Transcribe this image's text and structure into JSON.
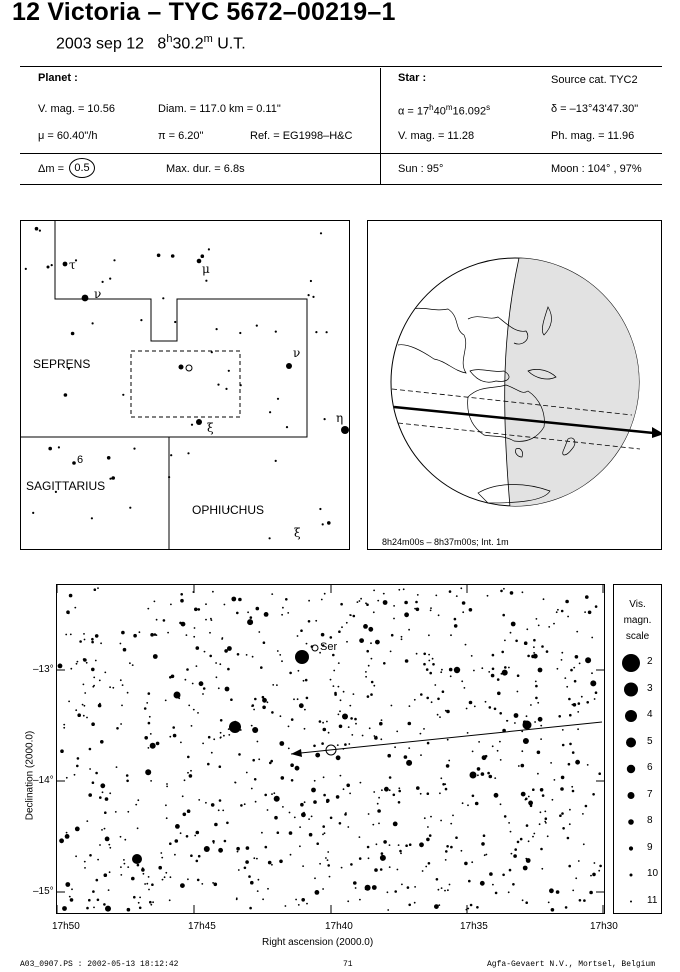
{
  "header": {
    "title": "12 Victoria  –  TYC 5672–00219–1",
    "date": "2003 sep 12",
    "time_h": "8",
    "time_frac": "30.2",
    "time_unit": "U.T.",
    "h_sup": "h",
    "m_sup": "m"
  },
  "planet": {
    "heading": "Planet :",
    "vmag": "V. mag. = 10.56",
    "diam": "Diam. = 117.0 km = 0.11\"",
    "mu": "μ =  60.40\"/h",
    "pi": "π =  6.20\"",
    "ref": "Ref. = EG1998–H&C",
    "dm_label": "Δm =",
    "dm_value": "0.5",
    "maxdur": "Max. dur. = 6.8s"
  },
  "star": {
    "heading": "Star :",
    "source": "Source cat.  TYC2",
    "alpha_a": "α = 17",
    "alpha_b": "40",
    "alpha_c": "16.092",
    "alpha_h": "h",
    "alpha_m": "m",
    "alpha_s": "s",
    "delta": "δ = –13°43'47.30\"",
    "vmag": "V. mag. = 11.28",
    "phmag": "Ph. mag. = 11.96",
    "sun": "Sun :  95°",
    "moon": "Moon : 104° , 97%"
  },
  "finder": {
    "labels": [
      {
        "text": "τ",
        "kind": "greek"
      },
      {
        "text": "μ",
        "kind": "greek"
      },
      {
        "text": "ν",
        "kind": "greek"
      },
      {
        "text": "ν",
        "kind": "greek"
      },
      {
        "text": "η",
        "kind": "greek"
      },
      {
        "text": "ξ",
        "kind": "greek"
      },
      {
        "text": "6",
        "kind": "num"
      },
      {
        "text": "ξ",
        "kind": "greek"
      }
    ],
    "constellations": [
      "SEPRENS",
      "SAGITTARIUS",
      "OPHIUCHUS"
    ]
  },
  "globe": {
    "caption": "8h24m00s –  8h37m00s; Int.  1m"
  },
  "chart_data": {
    "type": "scatter",
    "title": "",
    "xlabel": "Right ascension (2000.0)",
    "ylabel": "Declination (2000.0)",
    "x_ticks": [
      "17h50",
      "17h45",
      "17h40",
      "17h35",
      "17h30"
    ],
    "y_ticks": [
      "–13°",
      "–14°",
      "–15°"
    ],
    "annotation": "Ser",
    "scale_title": [
      "Vis.",
      "magn.",
      "scale"
    ],
    "scale_mags": [
      "2",
      "3",
      "4",
      "5",
      "6",
      "7",
      "8",
      "9",
      "10",
      "11"
    ],
    "target_star": {
      "ra": "17h40m16.092s",
      "dec": "–13°43'47.30\""
    }
  },
  "footer": {
    "left": "A03_0907.PS : 2002-05-13 18:12:42",
    "center": "71",
    "right": "Agfa-Gevaert N.V., Mortsel, Belgium"
  }
}
